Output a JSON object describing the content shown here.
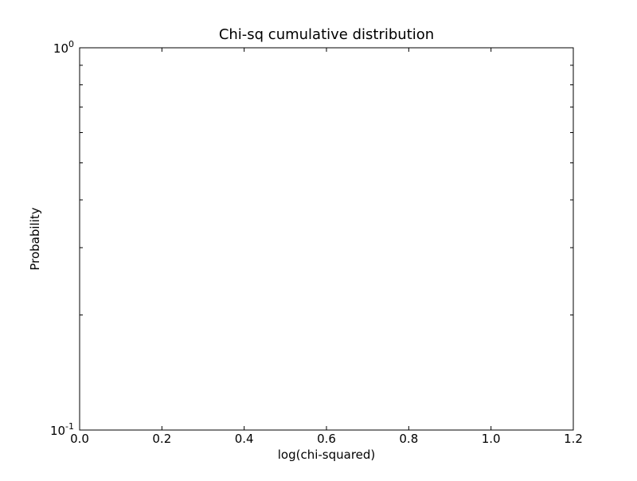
{
  "chart_data": {
    "type": "line",
    "title": "Chi-sq cumulative distribution",
    "xlabel": "log(chi-squared)",
    "ylabel": "Probability",
    "xlim": [
      0.0,
      1.2
    ],
    "ylim": [
      0.1,
      1.0
    ],
    "yscale": "log",
    "grid": false,
    "x_ticks": [
      {
        "value": 0.0,
        "label": "0.0"
      },
      {
        "value": 0.2,
        "label": "0.2"
      },
      {
        "value": 0.4,
        "label": "0.4"
      },
      {
        "value": 0.6,
        "label": "0.6"
      },
      {
        "value": 0.8,
        "label": "0.8"
      },
      {
        "value": 1.0,
        "label": "1.0"
      },
      {
        "value": 1.2,
        "label": "1.2"
      }
    ],
    "y_major_ticks": [
      {
        "value": 0.1,
        "base": "10",
        "exponent": "-1"
      },
      {
        "value": 1.0,
        "base": "10",
        "exponent": "0"
      }
    ],
    "y_minor_ticks": [
      0.2,
      0.3,
      0.4,
      0.5,
      0.6,
      0.7,
      0.8,
      0.9
    ],
    "series": []
  }
}
